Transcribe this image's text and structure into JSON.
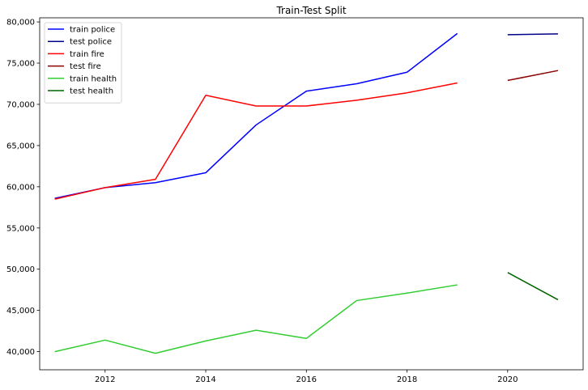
{
  "chart_data": {
    "type": "line",
    "title": "Train-Test Split",
    "xlabel": "",
    "ylabel": "",
    "xlim": [
      2010.7,
      2021.5
    ],
    "ylim": [
      37800,
      80500
    ],
    "x_ticks": [
      2012,
      2014,
      2016,
      2018,
      2020
    ],
    "x_tick_labels": [
      "2012",
      "2014",
      "2016",
      "2018",
      "2020"
    ],
    "y_ticks": [
      40000,
      45000,
      50000,
      55000,
      60000,
      65000,
      70000,
      75000,
      80000
    ],
    "y_tick_labels": [
      "40,000",
      "45,000",
      "50,000",
      "55,000",
      "60,000",
      "65,000",
      "70,000",
      "75,000",
      "80,000"
    ],
    "grid": false,
    "legend_position": "top-left",
    "series": [
      {
        "name": "train police",
        "color": "#0000ff",
        "x": [
          2011,
          2012,
          2013,
          2014,
          2015,
          2016,
          2017,
          2018,
          2019
        ],
        "y": [
          58600,
          59900,
          60500,
          61700,
          67500,
          71600,
          72500,
          73900,
          78600
        ]
      },
      {
        "name": "test police",
        "color": "#00008b",
        "x": [
          2020,
          2021
        ],
        "y": [
          78450,
          78550
        ]
      },
      {
        "name": "train fire",
        "color": "#ff0000",
        "x": [
          2011,
          2012,
          2013,
          2014,
          2015,
          2016,
          2017,
          2018,
          2019
        ],
        "y": [
          58500,
          59900,
          60900,
          71100,
          69800,
          69800,
          70500,
          71400,
          72600
        ]
      },
      {
        "name": "test fire",
        "color": "#8b0000",
        "x": [
          2020,
          2021
        ],
        "y": [
          72900,
          74100
        ]
      },
      {
        "name": "train health",
        "color": "#32cd32",
        "x": [
          2011,
          2012,
          2013,
          2014,
          2015,
          2016,
          2017,
          2018,
          2019
        ],
        "y": [
          40000,
          41400,
          39800,
          41300,
          42600,
          41600,
          46200,
          47100,
          48100
        ]
      },
      {
        "name": "test health",
        "color": "#006400",
        "x": [
          2020,
          2021
        ],
        "y": [
          49600,
          46300
        ]
      }
    ]
  }
}
